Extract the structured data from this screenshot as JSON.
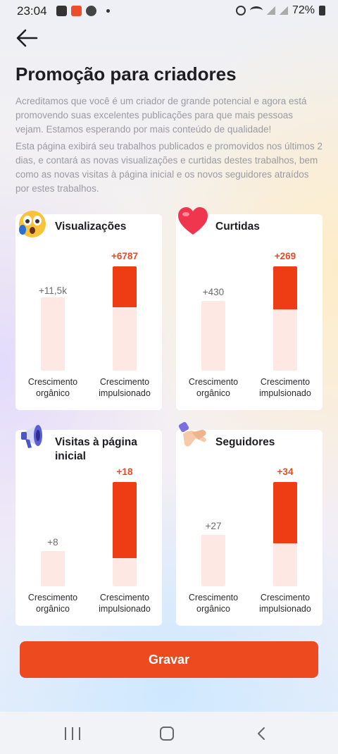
{
  "status_bar": {
    "time": "23:04",
    "battery": "72%",
    "left_icons": [
      "gallery-icon",
      "shopee-app-icon",
      "chrome-icon",
      "dot-icon"
    ],
    "right_icons": [
      "alarm-icon",
      "wifi-icon",
      "signal-icon",
      "signal-icon",
      "battery-icon"
    ]
  },
  "header": {
    "title": "Promoção para criadores"
  },
  "description": {
    "paragraph1": "Acreditamos que você é um criador de grande potencial e agora está promovendo suas excelentes publicações para que mais pessoas vejam. Estamos esperando por mais conteúdo de qualidade!",
    "paragraph2": "Esta página exibirá seu trabalhos publicados e promovidos nos últimos 2 dias, e contará as novas visualizações e curtidas destes trabalhos, bem como as novas visitas à página inicial e os novos seguidores atraídos por estes trabalhos."
  },
  "labels": {
    "organic": "Crescimento orgânico",
    "boosted": "Crescimento impulsionado"
  },
  "cards": [
    {
      "title": "Visualizações",
      "icon": "surprised-face-icon",
      "organic_value": "+11,5k",
      "boosted_value": "+6787",
      "organic_level": 0.7,
      "boosted_level": 1.0,
      "boosted_fill": 0.39
    },
    {
      "title": "Curtidas",
      "icon": "heart-icon",
      "organic_value": "+430",
      "boosted_value": "+269",
      "organic_level": 0.67,
      "boosted_level": 1.0,
      "boosted_fill": 0.41
    },
    {
      "title": "Visitas à página inicial",
      "icon": "megaphone-icon",
      "organic_value": "+8",
      "boosted_value": "+18",
      "organic_level": 0.34,
      "boosted_level": 1.0,
      "boosted_fill": 0.73
    },
    {
      "title": "Seguidores",
      "icon": "handshake-icon",
      "organic_value": "+27",
      "boosted_value": "+34",
      "organic_level": 0.49,
      "boosted_level": 1.0,
      "boosted_fill": 0.59
    }
  ],
  "colors": {
    "accent": "#ee4a1f",
    "bar_fill": "#ee3c15",
    "bar_track": "#fde8e3",
    "boost_text": "#e64a25"
  },
  "actions": {
    "record_label": "Gravar"
  },
  "navigation": {
    "icons": [
      "recent-apps-icon",
      "home-icon",
      "back-icon"
    ]
  }
}
